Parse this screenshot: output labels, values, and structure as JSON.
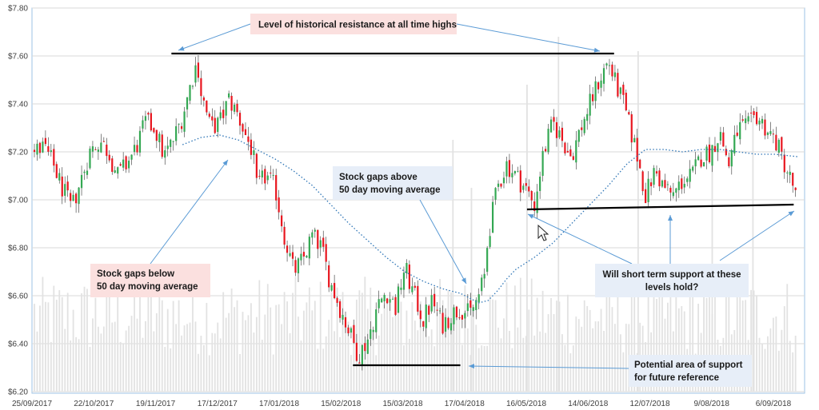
{
  "colors": {
    "up": "#34a853",
    "down": "#e8161f",
    "volume": "#e2e2e2",
    "moving_average": "#2e75b6",
    "level_line": "#000000",
    "annotation_arrow": "#5b9bd5",
    "frame": "#9dc3e6",
    "gridline": "#d9d9d9",
    "callout_pink": "#fbe0df",
    "callout_blue": "#e7eef8"
  },
  "chart_data": {
    "type": "candlestick",
    "ylim": [
      6.2,
      7.8
    ],
    "y_ticks": [
      "$6.20",
      "$6.40",
      "$6.60",
      "$6.80",
      "$7.00",
      "$7.20",
      "$7.40",
      "$7.60",
      "$7.80"
    ],
    "x_ticks": [
      "25/09/2017",
      "22/10/2017",
      "19/11/2017",
      "17/12/2017",
      "17/01/2018",
      "15/02/2018",
      "15/03/2018",
      "17/04/2018",
      "16/05/2018",
      "14/06/2018",
      "12/07/2018",
      "9/08/2018",
      "6/09/2018"
    ],
    "grid": true,
    "price_path": [
      [
        0,
        7.2
      ],
      [
        5,
        7.22
      ],
      [
        10,
        7.15
      ],
      [
        15,
        7.05
      ],
      [
        20,
        6.96
      ],
      [
        25,
        7.08
      ],
      [
        30,
        7.2
      ],
      [
        35,
        7.25
      ],
      [
        40,
        7.2
      ],
      [
        45,
        7.1
      ],
      [
        50,
        7.15
      ],
      [
        55,
        7.22
      ],
      [
        60,
        7.32
      ],
      [
        65,
        7.3
      ],
      [
        70,
        7.18
      ],
      [
        75,
        7.25
      ],
      [
        80,
        7.35
      ],
      [
        85,
        7.5
      ],
      [
        88,
        7.58
      ],
      [
        90,
        7.45
      ],
      [
        95,
        7.3
      ],
      [
        100,
        7.32
      ],
      [
        105,
        7.42
      ],
      [
        110,
        7.35
      ],
      [
        115,
        7.25
      ],
      [
        118,
        7.2
      ],
      [
        120,
        7.05
      ],
      [
        125,
        7.1
      ],
      [
        130,
        7.05
      ],
      [
        135,
        6.85
      ],
      [
        140,
        6.7
      ],
      [
        145,
        6.75
      ],
      [
        150,
        6.85
      ],
      [
        155,
        6.8
      ],
      [
        160,
        6.65
      ],
      [
        165,
        6.55
      ],
      [
        170,
        6.45
      ],
      [
        175,
        6.35
      ],
      [
        180,
        6.42
      ],
      [
        185,
        6.55
      ],
      [
        190,
        6.62
      ],
      [
        195,
        6.55
      ],
      [
        200,
        6.72
      ],
      [
        205,
        6.6
      ],
      [
        210,
        6.5
      ],
      [
        215,
        6.58
      ],
      [
        220,
        6.48
      ],
      [
        225,
        6.52
      ],
      [
        230,
        6.55
      ],
      [
        235,
        6.52
      ],
      [
        240,
        6.6
      ],
      [
        243,
        6.68
      ],
      [
        245,
        6.85
      ],
      [
        250,
        7.05
      ],
      [
        255,
        7.15
      ],
      [
        260,
        7.1
      ],
      [
        265,
        7.05
      ],
      [
        270,
        6.98
      ],
      [
        275,
        7.2
      ],
      [
        280,
        7.32
      ],
      [
        285,
        7.25
      ],
      [
        290,
        7.18
      ],
      [
        295,
        7.3
      ],
      [
        300,
        7.4
      ],
      [
        305,
        7.5
      ],
      [
        310,
        7.58
      ],
      [
        313,
        7.5
      ],
      [
        318,
        7.4
      ],
      [
        325,
        7.2
      ],
      [
        330,
        7.02
      ],
      [
        335,
        7.12
      ],
      [
        340,
        7.05
      ],
      [
        345,
        7.02
      ],
      [
        350,
        7.08
      ],
      [
        355,
        7.1
      ],
      [
        360,
        7.18
      ],
      [
        365,
        7.2
      ],
      [
        370,
        7.28
      ],
      [
        375,
        7.15
      ],
      [
        380,
        7.3
      ],
      [
        385,
        7.3
      ],
      [
        390,
        7.35
      ],
      [
        395,
        7.3
      ],
      [
        400,
        7.25
      ],
      [
        405,
        7.15
      ],
      [
        410,
        7.05
      ],
      [
        412,
        6.98
      ]
    ],
    "days_total": 412,
    "moving_average_path": [
      [
        80,
        7.23
      ],
      [
        90,
        7.26
      ],
      [
        100,
        7.27
      ],
      [
        110,
        7.25
      ],
      [
        120,
        7.21
      ],
      [
        130,
        7.17
      ],
      [
        140,
        7.12
      ],
      [
        150,
        7.06
      ],
      [
        160,
        6.98
      ],
      [
        170,
        6.9
      ],
      [
        180,
        6.83
      ],
      [
        190,
        6.76
      ],
      [
        200,
        6.7
      ],
      [
        210,
        6.66
      ],
      [
        220,
        6.63
      ],
      [
        230,
        6.61
      ],
      [
        240,
        6.57
      ],
      [
        245,
        6.58
      ],
      [
        250,
        6.62
      ],
      [
        255,
        6.67
      ],
      [
        260,
        6.71
      ],
      [
        270,
        6.76
      ],
      [
        280,
        6.82
      ],
      [
        290,
        6.9
      ],
      [
        300,
        6.98
      ],
      [
        310,
        7.06
      ],
      [
        320,
        7.15
      ],
      [
        330,
        7.21
      ],
      [
        340,
        7.21
      ],
      [
        350,
        7.2
      ],
      [
        360,
        7.21
      ],
      [
        370,
        7.21
      ],
      [
        380,
        7.2
      ],
      [
        390,
        7.19
      ],
      [
        400,
        7.19
      ],
      [
        412,
        7.18
      ]
    ],
    "levels": [
      {
        "name": "resistance",
        "y": 7.61,
        "x_from": 74,
        "x_to": 313
      },
      {
        "name": "short-term-support",
        "y_start": 6.96,
        "y_end": 6.98,
        "x_from": 266,
        "x_to": 410
      },
      {
        "name": "potential-support",
        "y": 6.31,
        "x_from": 172,
        "x_to": 230
      }
    ],
    "annotations": {
      "resistance": "Level of historical resistance at all time highs",
      "gap_below_line1": "Stock gaps below",
      "gap_below_line2": "50 day moving average",
      "gap_above_line1": "Stock gaps above",
      "gap_above_line2": "50 day moving average",
      "short_support_line1": "Will short term support at these",
      "short_support_line2": "levels hold?",
      "potential_support_line1": "Potential area of support",
      "potential_support_line2": "for future reference"
    }
  }
}
